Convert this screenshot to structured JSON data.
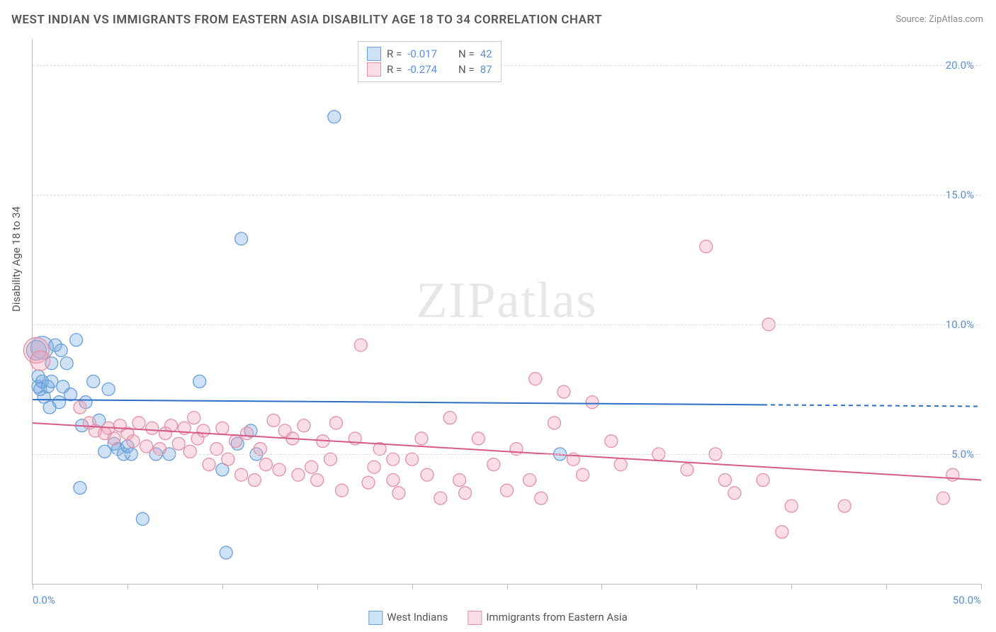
{
  "title": "WEST INDIAN VS IMMIGRANTS FROM EASTERN ASIA DISABILITY AGE 18 TO 34 CORRELATION CHART",
  "source_label": "Source: ",
  "source_value": "ZipAtlas.com",
  "yaxis_title": "Disability Age 18 to 34",
  "watermark": "ZIPatlas",
  "chart": {
    "type": "scatter-with-regression",
    "xlim": [
      0,
      50
    ],
    "ylim": [
      0,
      21
    ],
    "x_tick_positions": [
      0,
      5,
      10,
      15,
      20,
      25,
      30,
      35,
      40,
      45,
      50
    ],
    "x_min_label": "0.0%",
    "x_max_label": "50.0%",
    "y_ticks": [
      {
        "value": 5,
        "label": "5.0%"
      },
      {
        "value": 10,
        "label": "10.0%"
      },
      {
        "value": 15,
        "label": "15.0%"
      },
      {
        "value": 20,
        "label": "20.0%"
      }
    ],
    "grid_color": "#dddddd",
    "axis_color": "#bbbbbb",
    "tick_label_color": "#5a8fd6",
    "background_color": "#ffffff",
    "marker_stroke_width": 1.3,
    "default_marker_radius": 9,
    "series": [
      {
        "name": "West Indians",
        "fill": "rgba(118,168,226,0.35)",
        "stroke": "#6a9fd8",
        "R": "-0.017",
        "N": "42",
        "regression": {
          "x1": 0,
          "y1": 7.1,
          "x2": 38.5,
          "y2": 6.9,
          "dash_extend_to": 50,
          "color": "#2e6fc4",
          "width": 2
        },
        "points": [
          {
            "x": 0.3,
            "y": 7.6
          },
          {
            "x": 0.4,
            "y": 7.5
          },
          {
            "x": 0.5,
            "y": 7.8
          },
          {
            "x": 0.6,
            "y": 7.2
          },
          {
            "x": 0.8,
            "y": 7.6
          },
          {
            "x": 0.9,
            "y": 6.8
          },
          {
            "x": 1.0,
            "y": 8.5
          },
          {
            "x": 0.5,
            "y": 9.1,
            "r": 16
          },
          {
            "x": 0.2,
            "y": 9.0,
            "r": 14
          },
          {
            "x": 1.2,
            "y": 9.2
          },
          {
            "x": 1.5,
            "y": 9.0
          },
          {
            "x": 1.8,
            "y": 8.5
          },
          {
            "x": 1.4,
            "y": 7.0
          },
          {
            "x": 2.0,
            "y": 7.3
          },
          {
            "x": 2.3,
            "y": 9.4
          },
          {
            "x": 2.8,
            "y": 7.0
          },
          {
            "x": 2.6,
            "y": 6.1
          },
          {
            "x": 3.2,
            "y": 7.8
          },
          {
            "x": 3.5,
            "y": 6.3
          },
          {
            "x": 3.8,
            "y": 5.1
          },
          {
            "x": 4.0,
            "y": 7.5
          },
          {
            "x": 4.3,
            "y": 5.4
          },
          {
            "x": 4.5,
            "y": 5.2
          },
          {
            "x": 4.8,
            "y": 5.0
          },
          {
            "x": 5.0,
            "y": 5.3
          },
          {
            "x": 5.2,
            "y": 5.0
          },
          {
            "x": 2.5,
            "y": 3.7
          },
          {
            "x": 5.8,
            "y": 2.5
          },
          {
            "x": 6.5,
            "y": 5.0
          },
          {
            "x": 7.2,
            "y": 5.0
          },
          {
            "x": 8.8,
            "y": 7.8
          },
          {
            "x": 10.0,
            "y": 4.4
          },
          {
            "x": 10.2,
            "y": 1.2
          },
          {
            "x": 10.8,
            "y": 5.4
          },
          {
            "x": 11.0,
            "y": 13.3
          },
          {
            "x": 11.5,
            "y": 5.9
          },
          {
            "x": 11.8,
            "y": 5.0
          },
          {
            "x": 15.9,
            "y": 18.0
          },
          {
            "x": 0.3,
            "y": 8.0
          },
          {
            "x": 1.0,
            "y": 7.8
          },
          {
            "x": 1.6,
            "y": 7.6
          },
          {
            "x": 27.8,
            "y": 5.0
          }
        ]
      },
      {
        "name": "Immigrants from Eastern Asia",
        "fill": "rgba(240,160,180,0.35)",
        "stroke": "#e490a8",
        "R": "-0.274",
        "N": "87",
        "regression": {
          "x1": 0,
          "y1": 6.2,
          "x2": 50,
          "y2": 4.0,
          "color": "#d65a8a",
          "width": 2
        },
        "points": [
          {
            "x": 0.2,
            "y": 9.0,
            "r": 18
          },
          {
            "x": 0.4,
            "y": 8.6,
            "r": 14
          },
          {
            "x": 2.5,
            "y": 6.8
          },
          {
            "x": 3.0,
            "y": 6.2
          },
          {
            "x": 3.3,
            "y": 5.9
          },
          {
            "x": 3.8,
            "y": 5.8
          },
          {
            "x": 4.0,
            "y": 6.0
          },
          {
            "x": 4.3,
            "y": 5.6
          },
          {
            "x": 4.6,
            "y": 6.1
          },
          {
            "x": 5.0,
            "y": 5.8
          },
          {
            "x": 5.3,
            "y": 5.5
          },
          {
            "x": 5.6,
            "y": 6.2
          },
          {
            "x": 6.0,
            "y": 5.3
          },
          {
            "x": 6.3,
            "y": 6.0
          },
          {
            "x": 6.7,
            "y": 5.2
          },
          {
            "x": 7.0,
            "y": 5.8
          },
          {
            "x": 7.3,
            "y": 6.1
          },
          {
            "x": 7.7,
            "y": 5.4
          },
          {
            "x": 8.0,
            "y": 6.0
          },
          {
            "x": 8.3,
            "y": 5.1
          },
          {
            "x": 8.7,
            "y": 5.6
          },
          {
            "x": 9.0,
            "y": 5.9
          },
          {
            "x": 9.3,
            "y": 4.6
          },
          {
            "x": 9.7,
            "y": 5.2
          },
          {
            "x": 10.0,
            "y": 6.0
          },
          {
            "x": 10.3,
            "y": 4.8
          },
          {
            "x": 10.7,
            "y": 5.5
          },
          {
            "x": 11.0,
            "y": 4.2
          },
          {
            "x": 11.3,
            "y": 5.8
          },
          {
            "x": 11.7,
            "y": 4.0
          },
          {
            "x": 12.0,
            "y": 5.2
          },
          {
            "x": 12.3,
            "y": 4.6
          },
          {
            "x": 12.7,
            "y": 6.3
          },
          {
            "x": 13.0,
            "y": 4.4
          },
          {
            "x": 13.3,
            "y": 5.9
          },
          {
            "x": 13.7,
            "y": 5.6
          },
          {
            "x": 14.0,
            "y": 4.2
          },
          {
            "x": 14.3,
            "y": 6.1
          },
          {
            "x": 14.7,
            "y": 4.5
          },
          {
            "x": 15.0,
            "y": 4.0
          },
          {
            "x": 15.3,
            "y": 5.5
          },
          {
            "x": 15.7,
            "y": 4.8
          },
          {
            "x": 16.0,
            "y": 6.2
          },
          {
            "x": 16.3,
            "y": 3.6
          },
          {
            "x": 17.0,
            "y": 5.6
          },
          {
            "x": 17.3,
            "y": 9.2
          },
          {
            "x": 17.7,
            "y": 3.9
          },
          {
            "x": 18.0,
            "y": 4.5
          },
          {
            "x": 18.3,
            "y": 5.2
          },
          {
            "x": 19.0,
            "y": 4.0
          },
          {
            "x": 19.0,
            "y": 4.8
          },
          {
            "x": 19.3,
            "y": 3.5
          },
          {
            "x": 20.0,
            "y": 4.8
          },
          {
            "x": 20.5,
            "y": 5.6
          },
          {
            "x": 20.8,
            "y": 4.2
          },
          {
            "x": 21.5,
            "y": 3.3
          },
          {
            "x": 22.0,
            "y": 6.4
          },
          {
            "x": 22.5,
            "y": 4.0
          },
          {
            "x": 22.8,
            "y": 3.5
          },
          {
            "x": 23.5,
            "y": 5.6
          },
          {
            "x": 24.3,
            "y": 4.6
          },
          {
            "x": 25.0,
            "y": 3.6
          },
          {
            "x": 25.5,
            "y": 5.2
          },
          {
            "x": 26.2,
            "y": 4.0
          },
          {
            "x": 26.5,
            "y": 7.9
          },
          {
            "x": 26.8,
            "y": 3.3
          },
          {
            "x": 27.5,
            "y": 6.2
          },
          {
            "x": 28.0,
            "y": 7.4
          },
          {
            "x": 28.5,
            "y": 4.8
          },
          {
            "x": 29.0,
            "y": 4.2
          },
          {
            "x": 29.5,
            "y": 7.0
          },
          {
            "x": 30.5,
            "y": 5.5
          },
          {
            "x": 31.0,
            "y": 4.6
          },
          {
            "x": 33.0,
            "y": 5.0
          },
          {
            "x": 34.5,
            "y": 4.4
          },
          {
            "x": 35.5,
            "y": 13.0
          },
          {
            "x": 36.0,
            "y": 5.0
          },
          {
            "x": 36.5,
            "y": 4.0
          },
          {
            "x": 37.0,
            "y": 3.5
          },
          {
            "x": 38.5,
            "y": 4.0
          },
          {
            "x": 38.8,
            "y": 10.0
          },
          {
            "x": 39.5,
            "y": 2.0
          },
          {
            "x": 40.0,
            "y": 3.0
          },
          {
            "x": 42.8,
            "y": 3.0
          },
          {
            "x": 48.5,
            "y": 4.2
          },
          {
            "x": 48.0,
            "y": 3.3
          },
          {
            "x": 8.5,
            "y": 6.4
          }
        ]
      }
    ]
  },
  "bottom_legend": [
    {
      "label": "West Indians",
      "fill": "rgba(118,168,226,0.35)",
      "stroke": "#6a9fd8"
    },
    {
      "label": "Immigrants from Eastern Asia",
      "fill": "rgba(240,160,180,0.35)",
      "stroke": "#e490a8"
    }
  ]
}
